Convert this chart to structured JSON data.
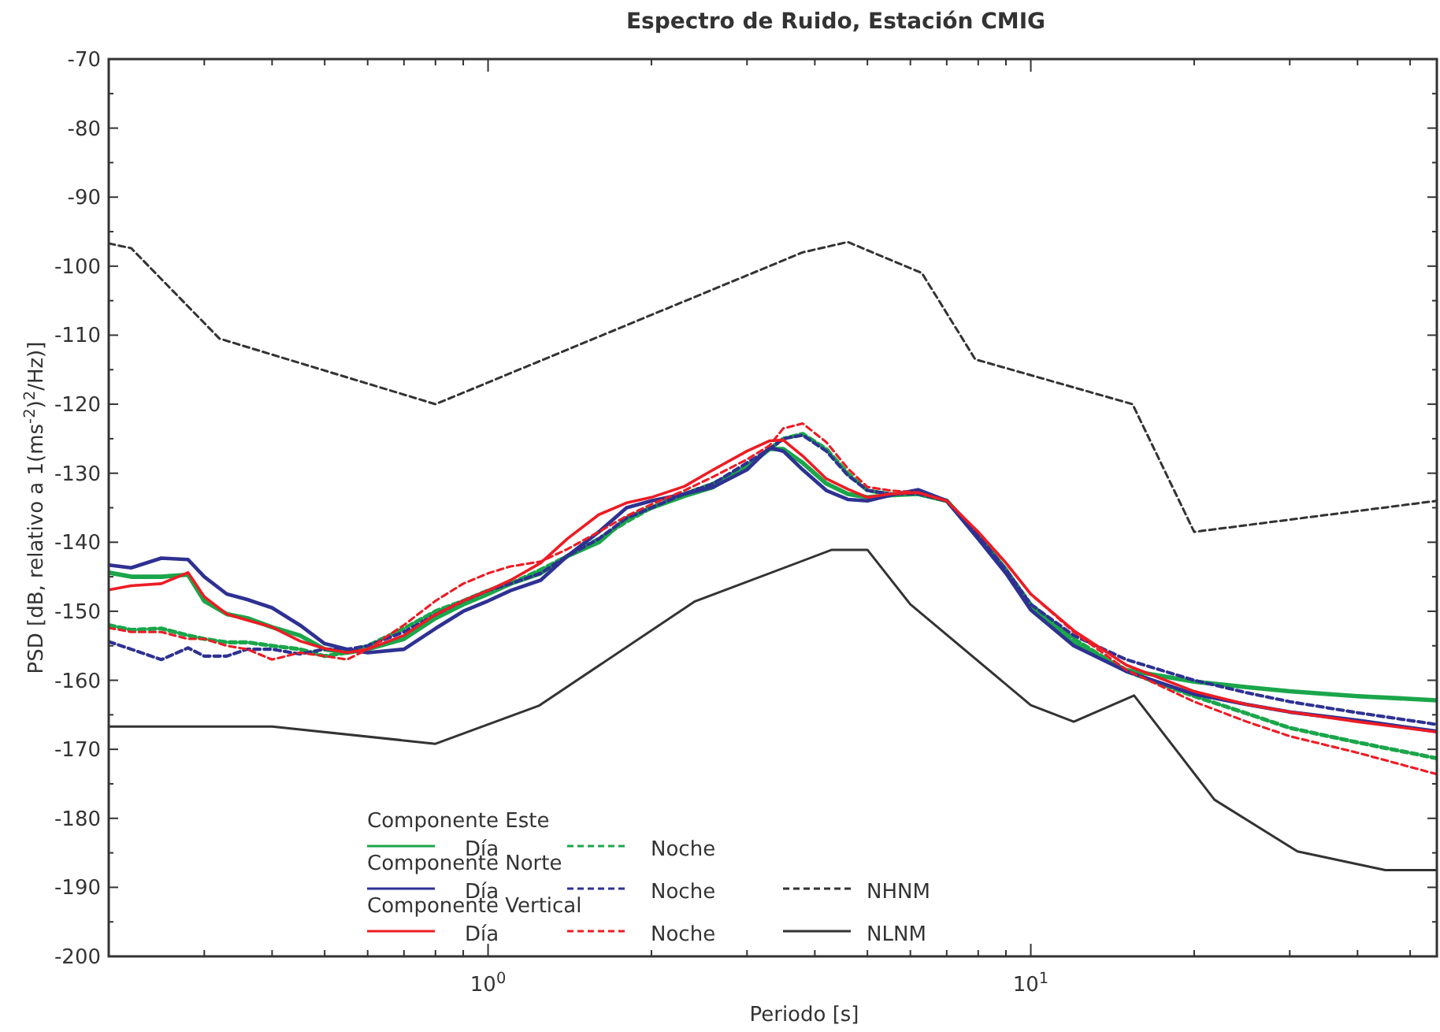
{
  "chart_data": {
    "type": "line",
    "title": "Espectro de Ruido,  Estación CMIG",
    "xlabel": "Periodo [s]",
    "ylabel": "PSD [dB, relativo a 1(ms$^{-2}$)$^{2}$/Hz)]",
    "log": "x",
    "grid": false,
    "legend": "bottom left",
    "annotations": [
      "Componente Este",
      "Componente Norte",
      "Componente Vertical"
    ],
    "xlim": [
      0.2,
      56
    ],
    "ylim": [
      -200,
      -70
    ],
    "xticks": [
      {
        "value": 0.2,
        "label": null
      },
      {
        "value": 0.3,
        "label": null
      },
      {
        "value": 0.4,
        "label": null
      },
      {
        "value": 0.5,
        "label": null
      },
      {
        "value": 0.6,
        "label": null
      },
      {
        "value": 0.7,
        "label": null
      },
      {
        "value": 0.8,
        "label": null
      },
      {
        "value": 0.9,
        "label": null
      },
      {
        "value": 1,
        "label": "10$^{0}$"
      },
      {
        "value": 2,
        "label": null
      },
      {
        "value": 3,
        "label": null
      },
      {
        "value": 4,
        "label": null
      },
      {
        "value": 5,
        "label": null
      },
      {
        "value": 6,
        "label": null
      },
      {
        "value": 7,
        "label": null
      },
      {
        "value": 8,
        "label": null
      },
      {
        "value": 9,
        "label": null
      },
      {
        "value": 10,
        "label": "10$^{1}$"
      },
      {
        "value": 20,
        "label": null
      },
      {
        "value": 30,
        "label": null
      },
      {
        "value": 40,
        "label": null
      },
      {
        "value": 50,
        "label": null
      }
    ],
    "yticks": [
      -70,
      {
        "value": -75,
        "label": null
      },
      -80,
      {
        "value": -85,
        "label": null
      },
      -90,
      {
        "value": -95,
        "label": null
      },
      -100,
      {
        "value": -105,
        "label": null
      },
      -110,
      {
        "value": -115,
        "label": null
      },
      -120,
      {
        "value": -125,
        "label": null
      },
      -130,
      {
        "value": -135,
        "label": null
      },
      -140,
      {
        "value": -145,
        "label": null
      },
      -150,
      {
        "value": -155,
        "label": null
      },
      -160,
      {
        "value": -165,
        "label": null
      },
      -170,
      {
        "value": -175,
        "label": null
      },
      -180,
      {
        "value": -185,
        "label": null
      },
      -190,
      {
        "value": -195,
        "label": null
      },
      -200
    ],
    "x": [
      0.2,
      0.22,
      0.25,
      0.28,
      0.3,
      0.33,
      0.36,
      0.4,
      0.45,
      0.5,
      0.55,
      0.6,
      0.7,
      0.8,
      0.9,
      1,
      1.1,
      1.25,
      1.4,
      1.6,
      1.8,
      2,
      2.3,
      2.6,
      3,
      3.3,
      3.5,
      3.8,
      4.2,
      4.6,
      5,
      5.5,
      6.2,
      7,
      8,
      9,
      10,
      12,
      15,
      20,
      25,
      30,
      40,
      56
    ],
    "series": [
      {
        "name": "Día",
        "color": "#1aa64a",
        "line_style": "solid",
        "values": [
          -144.4,
          -145,
          -145,
          -144.7,
          -148.5,
          -150.4,
          -151,
          -152.3,
          -153.5,
          -155.5,
          -156,
          -155.5,
          -154,
          -151,
          -149,
          -147.5,
          -146,
          -144.5,
          -142,
          -140,
          -136.5,
          -135,
          -133.3,
          -132,
          -129,
          -126.5,
          -126.5,
          -128.5,
          -131.5,
          -133,
          -133.5,
          -133.2,
          -133,
          -134,
          -139,
          -144,
          -149.4,
          -154.7,
          -158.5,
          -160.2,
          -161,
          -161.6,
          -162.3,
          -162.9
        ]
      },
      {
        "name": "Noche",
        "color": "#1aa64a",
        "line_style": "dashed",
        "values": [
          -152,
          -152.7,
          -152.5,
          -153.5,
          -154,
          -154.5,
          -154.5,
          -155,
          -155.5,
          -156.5,
          -156,
          -155,
          -152.5,
          -150,
          -148.5,
          -147,
          -146,
          -144,
          -142,
          -139.5,
          -137,
          -135,
          -133,
          -131.5,
          -129,
          -126.5,
          -125,
          -124.3,
          -126.5,
          -130,
          -132.5,
          -133,
          -133,
          -134,
          -139,
          -144,
          -149,
          -154,
          -158.7,
          -162.3,
          -164.8,
          -166.9,
          -169,
          -171.3
        ]
      },
      {
        "name": "Día",
        "color": "#2e3192",
        "line_style": "solid",
        "values": [
          -143.3,
          -143.7,
          -142.3,
          -142.5,
          -145,
          -147.5,
          -148.3,
          -149.5,
          -152,
          -154.7,
          -155.5,
          -156,
          -155.5,
          -152.5,
          -150,
          -148.5,
          -147,
          -145.5,
          -142,
          -138.5,
          -135,
          -134,
          -133,
          -132,
          -129.5,
          -126.3,
          -126.8,
          -129.5,
          -132.5,
          -133.8,
          -134,
          -133.2,
          -132.4,
          -134,
          -139.5,
          -144.5,
          -149.8,
          -155,
          -158.7,
          -162,
          -163.5,
          -164.6,
          -165.8,
          -167.4
        ]
      },
      {
        "name": "Noche",
        "color": "#2e3192",
        "line_style": "dashed",
        "values": [
          -154.4,
          -155.5,
          -157,
          -155.3,
          -156.5,
          -156.5,
          -155.5,
          -155.5,
          -156.2,
          -155.5,
          -155.5,
          -155,
          -153,
          -150.5,
          -148.5,
          -147,
          -146,
          -144.5,
          -142,
          -139.5,
          -136.5,
          -135,
          -133,
          -131.5,
          -128.5,
          -126.5,
          -125,
          -124.5,
          -126.8,
          -130.3,
          -132.5,
          -133,
          -133,
          -134,
          -139,
          -144,
          -149,
          -153.5,
          -157,
          -160,
          -161.8,
          -163.1,
          -164.7,
          -166.4
        ]
      },
      {
        "name": "Día",
        "color": "#ed1c24",
        "line_style": "solid",
        "values": [
          -146.9,
          -146.3,
          -146,
          -144.4,
          -147.9,
          -150.4,
          -151.3,
          -152.3,
          -154.3,
          -155.4,
          -156,
          -155.5,
          -153.5,
          -150.5,
          -148.5,
          -147,
          -145.5,
          -143,
          -139.5,
          -136,
          -134.3,
          -133.5,
          -131.9,
          -129.5,
          -126.8,
          -125.3,
          -125.2,
          -127.5,
          -130.8,
          -132.3,
          -133.5,
          -133,
          -132.8,
          -134,
          -138.5,
          -143,
          -147.5,
          -152.8,
          -157.8,
          -161.6,
          -163.5,
          -164.6,
          -166,
          -167.5
        ]
      },
      {
        "name": "Noche",
        "color": "#ed1c24",
        "line_style": "dashed",
        "values": [
          -152.4,
          -153,
          -153,
          -154,
          -154,
          -155,
          -155.5,
          -157,
          -156,
          -156.5,
          -157,
          -155.5,
          -152,
          -148.5,
          -146,
          -144.5,
          -143.5,
          -142.8,
          -141,
          -138.5,
          -136.2,
          -134.5,
          -132.5,
          -130.5,
          -128,
          -126,
          -123.5,
          -122.8,
          -125.5,
          -129.3,
          -132,
          -132.5,
          -132.8,
          -134,
          -138.5,
          -143,
          -147.5,
          -153,
          -158.5,
          -163.1,
          -166,
          -168.1,
          -170.5,
          -173.6
        ]
      },
      {
        "name": "NHNM",
        "color": "#333333",
        "line_style": "dashed",
        "x": [
          0.2,
          0.22,
          0.32,
          0.8,
          3.8,
          4.6,
          6.3,
          7.9,
          15.4,
          20,
          56
        ],
        "values": [
          -96.7,
          -97.4,
          -110.5,
          -120,
          -98,
          -96.5,
          -101,
          -113.5,
          -120,
          -138.5,
          -134
        ]
      },
      {
        "name": "NLNM",
        "color": "#333333",
        "line_style": "solid",
        "x": [
          0.2,
          0.4,
          0.8,
          1.24,
          2.4,
          4.3,
          5,
          6,
          10,
          12,
          15.5,
          21.8,
          31,
          45,
          56
        ],
        "values": [
          -166.7,
          -166.7,
          -169.2,
          -163.7,
          -148.6,
          -141.1,
          -141.1,
          -149,
          -163.6,
          -166,
          -162.2,
          -177.3,
          -184.8,
          -187.5,
          -187.5
        ]
      }
    ]
  }
}
